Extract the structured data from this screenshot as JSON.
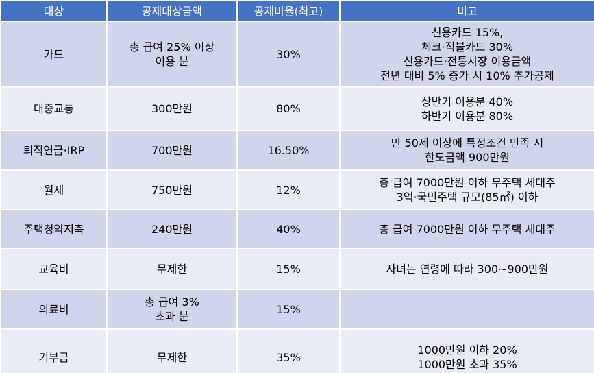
{
  "table": {
    "header": [
      "대상",
      "공제대상금액",
      "공제비율(최고)",
      "비고"
    ],
    "rows": [
      [
        [
          "카드"
        ],
        [
          "총 급여 25% 이상",
          "이용 분"
        ],
        [
          "30%"
        ],
        [
          "신용카드 15%,",
          "체크·직불카드 30%",
          "신용카드·전통시장 이용금액",
          "전년 대비 5% 증가 시 10% 추가공제"
        ]
      ],
      [
        [
          "대중교통"
        ],
        [
          "300만원"
        ],
        [
          "80%"
        ],
        [
          "상반기 이용분 40%",
          "하반기 이용분 80%"
        ]
      ],
      [
        [
          "퇴직연금·IRP"
        ],
        [
          "700만원"
        ],
        [
          "16.50%"
        ],
        [
          "만 50세 이상에 특정조건 만족 시",
          "한도금액 900만원"
        ]
      ],
      [
        [
          "월세"
        ],
        [
          "750만원"
        ],
        [
          "12%"
        ],
        [
          "총 급여 7000만원 이하 무주택 세대주",
          "3억·국민주택 규모(85㎡) 이하"
        ]
      ],
      [
        [
          "주택청약저축"
        ],
        [
          "240만원"
        ],
        [
          "40%"
        ],
        [
          "총 급여 7000만원 이하 무주택 세대주"
        ]
      ],
      [
        [
          "교육비"
        ],
        [
          "무제한"
        ],
        [
          "15%"
        ],
        [
          "자녀는 연령에 따라 300~900만원"
        ]
      ],
      [
        [
          "의료비"
        ],
        [
          "총 급여 3%",
          "초과 분"
        ],
        [
          "15%"
        ],
        []
      ],
      [
        [
          "기부금"
        ],
        [
          "무제한"
        ],
        [
          "35%"
        ],
        [
          "1000만원 이하 20%",
          "1000만원 초과 35%"
        ]
      ]
    ]
  }
}
